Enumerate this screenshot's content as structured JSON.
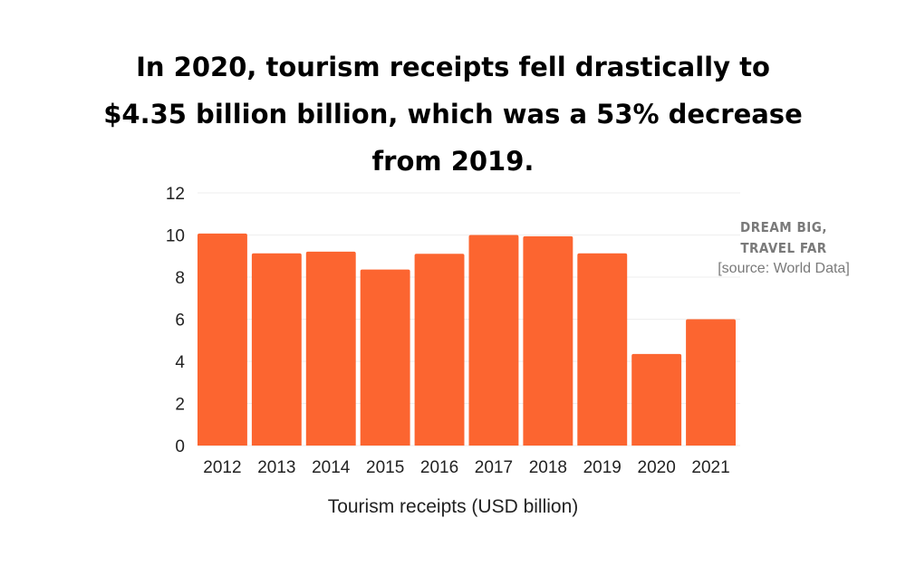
{
  "chart_data": {
    "type": "bar",
    "title": "In 2020, tourism receipts fell drastically to $4.35 billion billion, which was a 53% decrease from 2019.",
    "xlabel": "Tourism receipts (USD billion)",
    "ylabel": "",
    "categories": [
      "2012",
      "2013",
      "2014",
      "2015",
      "2016",
      "2017",
      "2018",
      "2019",
      "2020",
      "2021"
    ],
    "values": [
      10.07,
      9.13,
      9.21,
      8.36,
      9.11,
      10.0,
      9.94,
      9.13,
      4.35,
      6.0
    ],
    "ylim": [
      0,
      12
    ],
    "yticks": [
      0,
      2,
      4,
      6,
      8,
      10,
      12
    ],
    "grid": true,
    "bar_color": "#fc6530"
  },
  "annotation": {
    "brand_line1": "DREAM BIG,",
    "brand_line2": "TRAVEL FAR",
    "source": "[source: World Data]"
  }
}
